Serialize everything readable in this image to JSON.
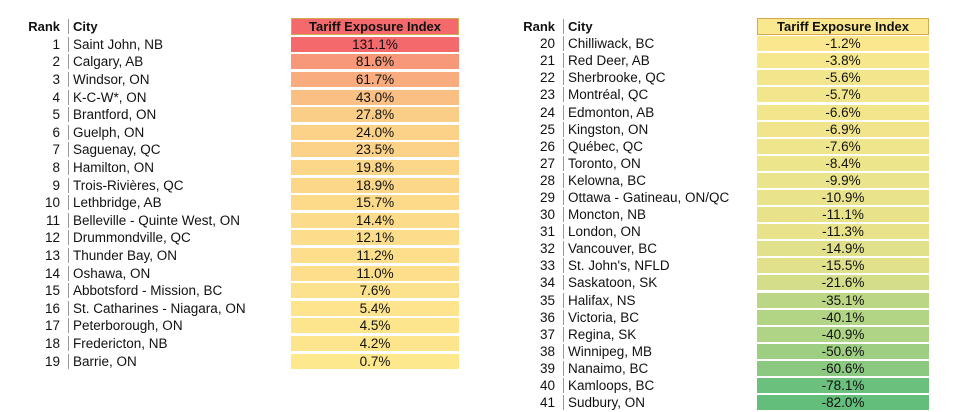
{
  "header": {
    "rank": "Rank",
    "city": "City",
    "index": "Tariff Exposure Index"
  },
  "chart_data": {
    "type": "table",
    "title": "Tariff Exposure Index",
    "columns": [
      "Rank",
      "City",
      "Tariff Exposure Index"
    ],
    "rows": [
      {
        "rank": "1",
        "city": "Saint John, NB",
        "value": 131.1,
        "label": "131.1%"
      },
      {
        "rank": "2",
        "city": "Calgary, AB",
        "value": 81.6,
        "label": "81.6%"
      },
      {
        "rank": "3",
        "city": "Windsor, ON",
        "value": 61.7,
        "label": "61.7%"
      },
      {
        "rank": "4",
        "city": "K-C-W*, ON",
        "value": 43.0,
        "label": "43.0%"
      },
      {
        "rank": "5",
        "city": "Brantford, ON",
        "value": 27.8,
        "label": "27.8%"
      },
      {
        "rank": "6",
        "city": "Guelph, ON",
        "value": 24.0,
        "label": "24.0%"
      },
      {
        "rank": "7",
        "city": "Saguenay, QC",
        "value": 23.5,
        "label": "23.5%"
      },
      {
        "rank": "8",
        "city": "Hamilton, ON",
        "value": 19.8,
        "label": "19.8%"
      },
      {
        "rank": "9",
        "city": "Trois-Rivières, QC",
        "value": 18.9,
        "label": "18.9%"
      },
      {
        "rank": "10",
        "city": "Lethbridge, AB",
        "value": 15.7,
        "label": "15.7%"
      },
      {
        "rank": "11",
        "city": "Belleville - Quinte West, ON",
        "value": 14.4,
        "label": "14.4%"
      },
      {
        "rank": "12",
        "city": "Drummondville, QC",
        "value": 12.1,
        "label": "12.1%"
      },
      {
        "rank": "13",
        "city": "Thunder Bay, ON",
        "value": 11.2,
        "label": "11.2%"
      },
      {
        "rank": "14",
        "city": "Oshawa, ON",
        "value": 11.0,
        "label": "11.0%"
      },
      {
        "rank": "15",
        "city": "Abbotsford - Mission, BC",
        "value": 7.6,
        "label": "7.6%"
      },
      {
        "rank": "16",
        "city": "St. Catharines - Niagara, ON",
        "value": 5.4,
        "label": "5.4%"
      },
      {
        "rank": "17",
        "city": "Peterborough, ON",
        "value": 4.5,
        "label": "4.5%"
      },
      {
        "rank": "18",
        "city": "Fredericton, NB",
        "value": 4.2,
        "label": "4.2%"
      },
      {
        "rank": "19",
        "city": "Barrie, ON",
        "value": 0.7,
        "label": "0.7%"
      },
      {
        "rank": "20",
        "city": "Chilliwack, BC",
        "value": -1.2,
        "label": "-1.2%"
      },
      {
        "rank": "21",
        "city": "Red Deer, AB",
        "value": -3.8,
        "label": "-3.8%"
      },
      {
        "rank": "22",
        "city": "Sherbrooke, QC",
        "value": -5.6,
        "label": "-5.6%"
      },
      {
        "rank": "23",
        "city": "Montréal, QC",
        "value": -5.7,
        "label": "-5.7%"
      },
      {
        "rank": "24",
        "city": "Edmonton, AB",
        "value": -6.6,
        "label": "-6.6%"
      },
      {
        "rank": "25",
        "city": "Kingston, ON",
        "value": -6.9,
        "label": "-6.9%"
      },
      {
        "rank": "26",
        "city": "Québec, QC",
        "value": -7.6,
        "label": "-7.6%"
      },
      {
        "rank": "27",
        "city": "Toronto, ON",
        "value": -8.4,
        "label": "-8.4%"
      },
      {
        "rank": "28",
        "city": "Kelowna, BC",
        "value": -9.9,
        "label": "-9.9%"
      },
      {
        "rank": "29",
        "city": "Ottawa - Gatineau, ON/QC",
        "value": -10.9,
        "label": "-10.9%"
      },
      {
        "rank": "30",
        "city": "Moncton, NB",
        "value": -11.1,
        "label": "-11.1%"
      },
      {
        "rank": "31",
        "city": "London, ON",
        "value": -11.3,
        "label": "-11.3%"
      },
      {
        "rank": "32",
        "city": "Vancouver, BC",
        "value": -14.9,
        "label": "-14.9%"
      },
      {
        "rank": "33",
        "city": "St. John's, NFLD",
        "value": -15.5,
        "label": "-15.5%"
      },
      {
        "rank": "34",
        "city": "Saskatoon, SK",
        "value": -21.6,
        "label": "-21.6%"
      },
      {
        "rank": "35",
        "city": "Halifax, NS",
        "value": -35.1,
        "label": "-35.1%"
      },
      {
        "rank": "36",
        "city": "Victoria, BC",
        "value": -40.1,
        "label": "-40.1%"
      },
      {
        "rank": "37",
        "city": "Regina, SK",
        "value": -40.9,
        "label": "-40.9%"
      },
      {
        "rank": "38",
        "city": "Winnipeg, MB",
        "value": -50.6,
        "label": "-50.6%"
      },
      {
        "rank": "39",
        "city": "Nanaimo, BC",
        "value": -60.6,
        "label": "-60.6%"
      },
      {
        "rank": "40",
        "city": "Kamloops, BC",
        "value": -78.1,
        "label": "-78.1%"
      },
      {
        "rank": "41",
        "city": "Sudbury, ON",
        "value": -82.0,
        "label": "-82.0%"
      }
    ],
    "split_after_rank": 19,
    "color_scale": {
      "max": 131.1,
      "mid": 0,
      "min": -82.0,
      "max_color": "#f4696b",
      "mid_color": "#fde98e",
      "min_color": "#63be7b"
    }
  }
}
